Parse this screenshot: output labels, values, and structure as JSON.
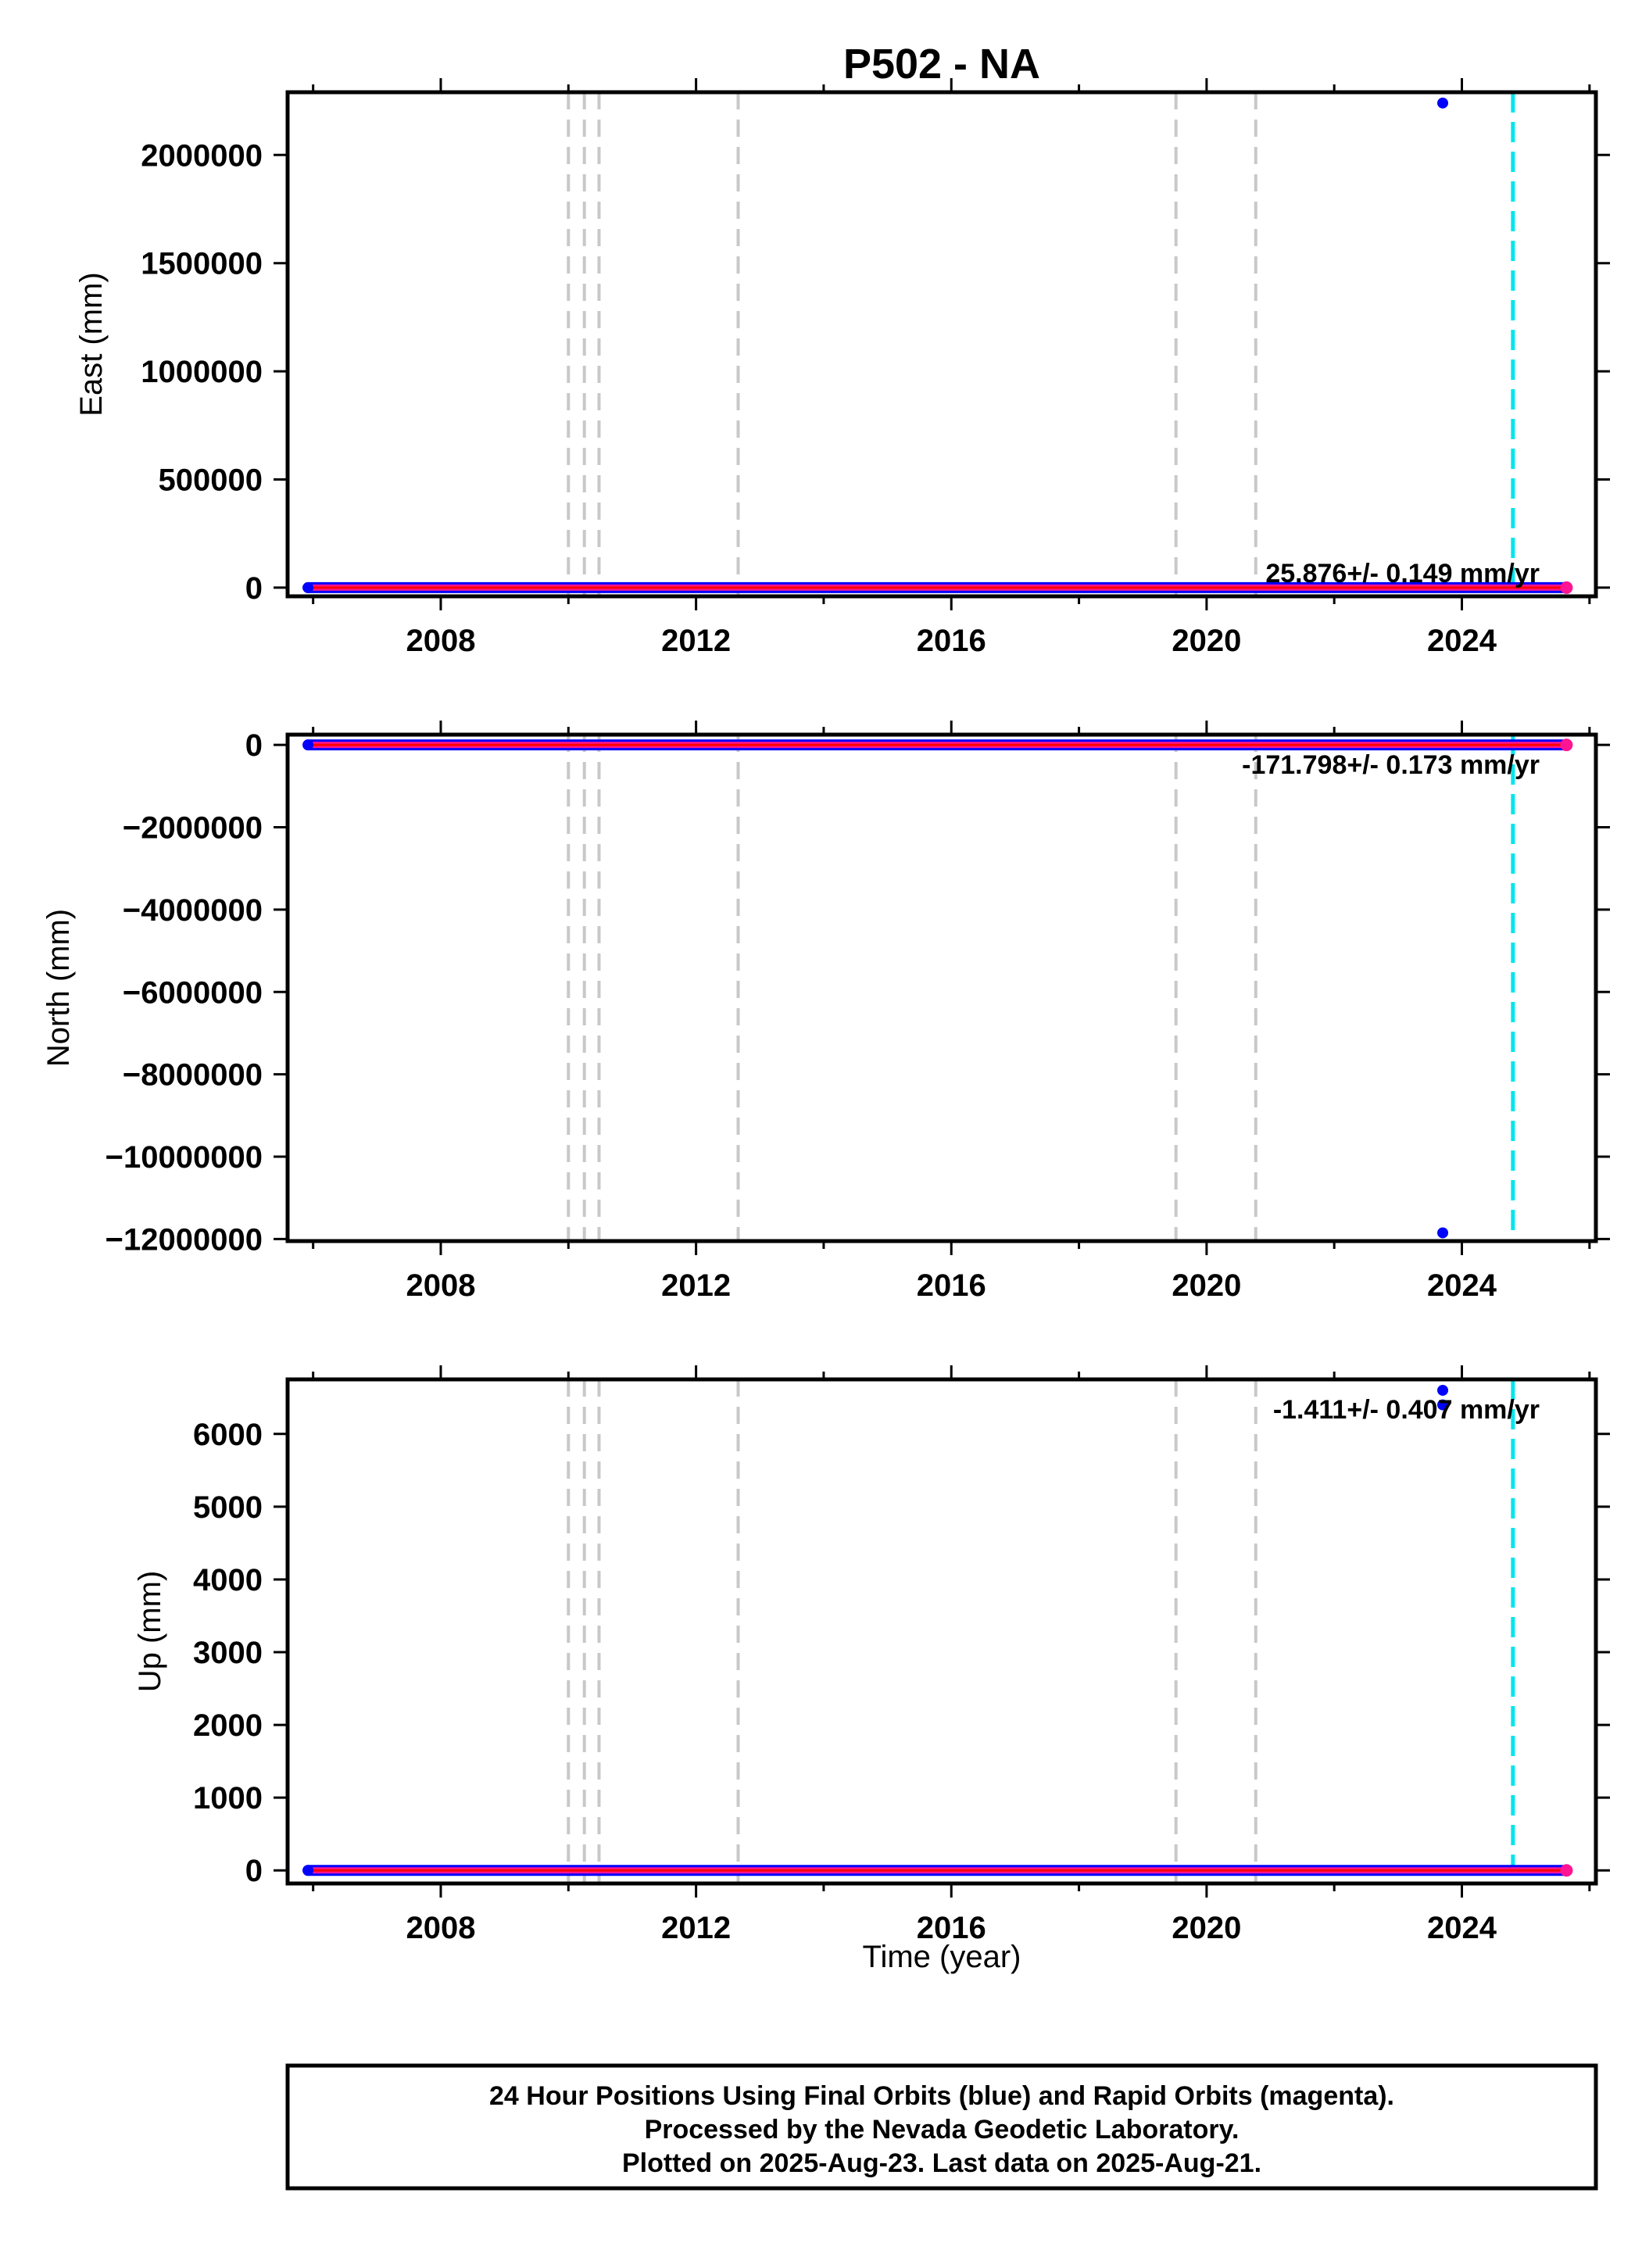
{
  "chart_data": {
    "title": "P502 - NA",
    "type": "scatter",
    "xlabel": "Time (year)",
    "xlim": [
      2005.6,
      2026.1
    ],
    "xticks": [
      2008,
      2012,
      2016,
      2020,
      2024
    ],
    "xtick_labels": [
      "2008",
      "2012",
      "2016",
      "2020",
      "2024"
    ],
    "xminor": [
      2006,
      2010,
      2014,
      2018,
      2022,
      2026
    ],
    "grid": false,
    "data_span": [
      2005.92,
      2025.64
    ],
    "event_lines": {
      "color": "#c8c8c8",
      "dates": [
        2010.0,
        2010.25,
        2010.48,
        2012.66,
        2019.52,
        2020.77
      ]
    },
    "equipment_change": {
      "color": "#00e5ee",
      "date": 2024.8
    },
    "series_colors": {
      "final": "#0000ff",
      "rapid": "#ff1493",
      "trend": "#ff0000"
    },
    "panels": [
      {
        "id": "east",
        "ylabel": "East (mm)",
        "ylim": [
          -40000,
          2290000
        ],
        "yticks": [
          0,
          500000,
          1000000,
          1500000,
          2000000
        ],
        "ytick_labels": [
          "0",
          "500000",
          "1000000",
          "1500000",
          "2000000"
        ],
        "rate": "25.876+/- 0.149 mm/yr",
        "rate_pos": "bottom-right",
        "baseline": 0,
        "outliers": [
          {
            "x": 2023.7,
            "y": 2240000
          }
        ]
      },
      {
        "id": "north",
        "ylabel": "North (mm)",
        "ylim": [
          -12050000,
          250000
        ],
        "yticks": [
          0,
          -2000000,
          -4000000,
          -6000000,
          -8000000,
          -10000000,
          -12000000
        ],
        "ytick_labels": [
          "0",
          "−2000000",
          "−4000000",
          "−6000000",
          "−8000000",
          "−10000000",
          "−12000000"
        ],
        "rate": "-171.798+/- 0.173 mm/yr",
        "rate_pos": "top-right",
        "baseline": 0,
        "outliers": [
          {
            "x": 2023.7,
            "y": -11850000
          }
        ]
      },
      {
        "id": "up",
        "ylabel": "Up (mm)",
        "ylim": [
          -180,
          6750
        ],
        "yticks": [
          0,
          1000,
          2000,
          3000,
          4000,
          5000,
          6000
        ],
        "ytick_labels": [
          "0",
          "1000",
          "2000",
          "3000",
          "4000",
          "5000",
          "6000"
        ],
        "rate": "-1.411+/- 0.407 mm/yr",
        "rate_pos": "top-right",
        "baseline": 0,
        "outliers": [
          {
            "x": 2023.7,
            "y": 6600
          },
          {
            "x": 2023.7,
            "y": 6400
          }
        ]
      }
    ]
  },
  "footer": {
    "lines": [
      "24 Hour Positions Using Final Orbits (blue) and Rapid Orbits (magenta).",
      "Processed by the Nevada Geodetic Laboratory.",
      "Plotted on 2025-Aug-23. Last data on 2025-Aug-21."
    ]
  }
}
